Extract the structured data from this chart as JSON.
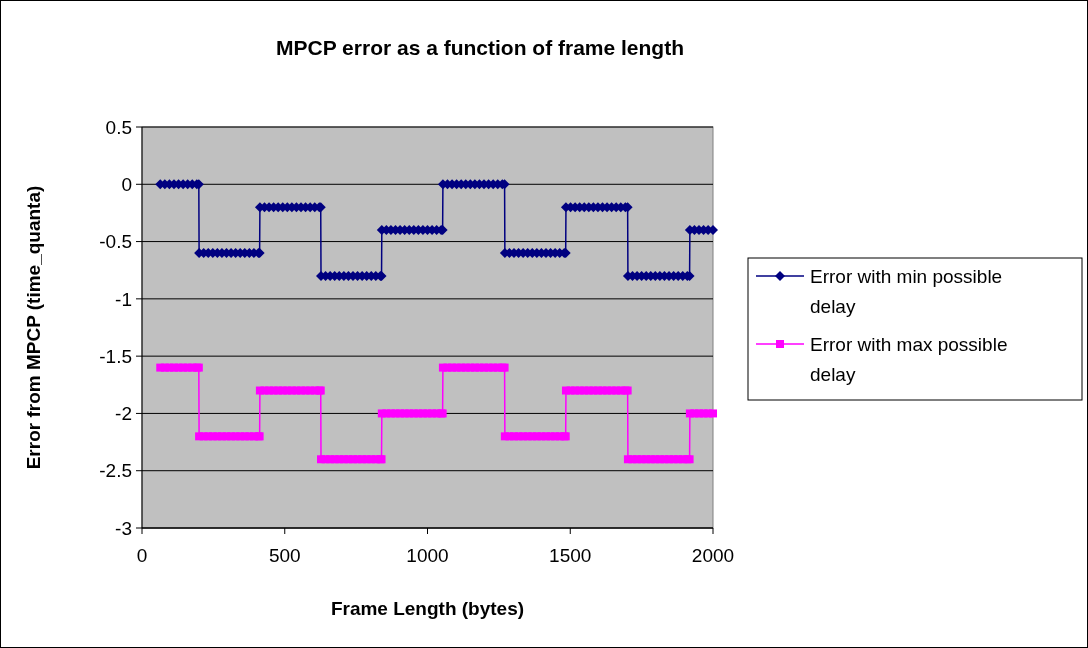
{
  "chart_data": {
    "type": "line",
    "title": "MPCP error as a function of frame length",
    "xlabel": "Frame Length (bytes)",
    "ylabel": "Error from MPCP (time_quanta)",
    "x": [
      64,
      80,
      96,
      112,
      128,
      144,
      160,
      176,
      192,
      199,
      200,
      216,
      232,
      248,
      264,
      280,
      296,
      312,
      328,
      344,
      360,
      376,
      392,
      408,
      412,
      413,
      429,
      445,
      461,
      477,
      493,
      509,
      525,
      541,
      557,
      573,
      589,
      605,
      621,
      626,
      627,
      643,
      659,
      675,
      691,
      707,
      723,
      739,
      755,
      771,
      787,
      803,
      819,
      835,
      839,
      840,
      856,
      872,
      888,
      904,
      920,
      936,
      952,
      968,
      984,
      1000,
      1016,
      1032,
      1048,
      1053,
      1054,
      1070,
      1086,
      1102,
      1118,
      1134,
      1150,
      1166,
      1182,
      1198,
      1214,
      1230,
      1246,
      1262,
      1270,
      1271,
      1287,
      1303,
      1319,
      1335,
      1351,
      1367,
      1383,
      1399,
      1415,
      1431,
      1447,
      1463,
      1479,
      1484,
      1485,
      1501,
      1517,
      1533,
      1549,
      1565,
      1581,
      1597,
      1613,
      1629,
      1645,
      1661,
      1677,
      1693,
      1701,
      1702,
      1718,
      1734,
      1750,
      1766,
      1782,
      1798,
      1814,
      1830,
      1846,
      1862,
      1878,
      1894,
      1910,
      1918,
      1919,
      1935,
      1951,
      1967,
      1983,
      2000
    ],
    "series": [
      {
        "name": "Error with min possible delay",
        "color": "#000080",
        "marker": "diamond",
        "values": [
          0,
          0,
          0,
          0,
          0,
          0,
          0,
          0,
          0,
          0,
          -0.6,
          -0.6,
          -0.6,
          -0.6,
          -0.6,
          -0.6,
          -0.6,
          -0.6,
          -0.6,
          -0.6,
          -0.6,
          -0.6,
          -0.6,
          -0.6,
          -0.6,
          -0.2,
          -0.2,
          -0.2,
          -0.2,
          -0.2,
          -0.2,
          -0.2,
          -0.2,
          -0.2,
          -0.2,
          -0.2,
          -0.2,
          -0.2,
          -0.2,
          -0.2,
          -0.8,
          -0.8,
          -0.8,
          -0.8,
          -0.8,
          -0.8,
          -0.8,
          -0.8,
          -0.8,
          -0.8,
          -0.8,
          -0.8,
          -0.8,
          -0.8,
          -0.8,
          -0.4,
          -0.4,
          -0.4,
          -0.4,
          -0.4,
          -0.4,
          -0.4,
          -0.4,
          -0.4,
          -0.4,
          -0.4,
          -0.4,
          -0.4,
          -0.4,
          -0.4,
          0,
          0,
          0,
          0,
          0,
          0,
          0,
          0,
          0,
          0,
          0,
          0,
          0,
          0,
          0,
          -0.6,
          -0.6,
          -0.6,
          -0.6,
          -0.6,
          -0.6,
          -0.6,
          -0.6,
          -0.6,
          -0.6,
          -0.6,
          -0.6,
          -0.6,
          -0.6,
          -0.6,
          -0.2,
          -0.2,
          -0.2,
          -0.2,
          -0.2,
          -0.2,
          -0.2,
          -0.2,
          -0.2,
          -0.2,
          -0.2,
          -0.2,
          -0.2,
          -0.2,
          -0.2,
          -0.8,
          -0.8,
          -0.8,
          -0.8,
          -0.8,
          -0.8,
          -0.8,
          -0.8,
          -0.8,
          -0.8,
          -0.8,
          -0.8,
          -0.8,
          -0.8,
          -0.8,
          -0.4,
          -0.4,
          -0.4,
          -0.4,
          -0.4,
          -0.4
        ]
      },
      {
        "name": "Error with max possible delay",
        "color": "#ff00ff",
        "marker": "square",
        "values": [
          -1.6,
          -1.6,
          -1.6,
          -1.6,
          -1.6,
          -1.6,
          -1.6,
          -1.6,
          -1.6,
          -1.6,
          -2.2,
          -2.2,
          -2.2,
          -2.2,
          -2.2,
          -2.2,
          -2.2,
          -2.2,
          -2.2,
          -2.2,
          -2.2,
          -2.2,
          -2.2,
          -2.2,
          -2.2,
          -1.8,
          -1.8,
          -1.8,
          -1.8,
          -1.8,
          -1.8,
          -1.8,
          -1.8,
          -1.8,
          -1.8,
          -1.8,
          -1.8,
          -1.8,
          -1.8,
          -1.8,
          -2.4,
          -2.4,
          -2.4,
          -2.4,
          -2.4,
          -2.4,
          -2.4,
          -2.4,
          -2.4,
          -2.4,
          -2.4,
          -2.4,
          -2.4,
          -2.4,
          -2.4,
          -2,
          -2,
          -2,
          -2,
          -2,
          -2,
          -2,
          -2,
          -2,
          -2,
          -2,
          -2,
          -2,
          -2,
          -2,
          -1.6,
          -1.6,
          -1.6,
          -1.6,
          -1.6,
          -1.6,
          -1.6,
          -1.6,
          -1.6,
          -1.6,
          -1.6,
          -1.6,
          -1.6,
          -1.6,
          -1.6,
          -2.2,
          -2.2,
          -2.2,
          -2.2,
          -2.2,
          -2.2,
          -2.2,
          -2.2,
          -2.2,
          -2.2,
          -2.2,
          -2.2,
          -2.2,
          -2.2,
          -2.2,
          -1.8,
          -1.8,
          -1.8,
          -1.8,
          -1.8,
          -1.8,
          -1.8,
          -1.8,
          -1.8,
          -1.8,
          -1.8,
          -1.8,
          -1.8,
          -1.8,
          -1.8,
          -2.4,
          -2.4,
          -2.4,
          -2.4,
          -2.4,
          -2.4,
          -2.4,
          -2.4,
          -2.4,
          -2.4,
          -2.4,
          -2.4,
          -2.4,
          -2.4,
          -2.4,
          -2,
          -2,
          -2,
          -2,
          -2,
          -2
        ]
      }
    ],
    "xlim": [
      0,
      2000
    ],
    "xticks": [
      0,
      500,
      1000,
      1500,
      2000
    ],
    "ylim": [
      -3,
      0.5
    ],
    "yticks": [
      0.5,
      0,
      -0.5,
      -1,
      -1.5,
      -2,
      -2.5,
      -3
    ],
    "grid": "y",
    "legend": "right"
  }
}
